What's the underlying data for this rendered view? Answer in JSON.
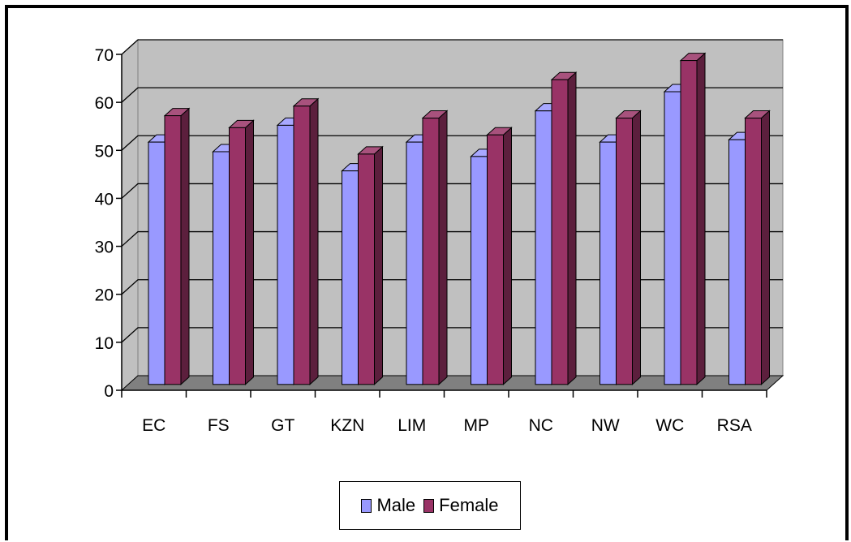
{
  "chart_data": {
    "type": "bar",
    "categories": [
      "EC",
      "FS",
      "GT",
      "KZN",
      "LIM",
      "MP",
      "NC",
      "NW",
      "WC",
      "RSA"
    ],
    "series": [
      {
        "name": "Male",
        "values": [
          50.5,
          48.5,
          54,
          44.5,
          50.5,
          47.5,
          57,
          50.5,
          61,
          51
        ]
      },
      {
        "name": "Female",
        "values": [
          56,
          53.5,
          58,
          48,
          55.5,
          52,
          63.5,
          55.5,
          67.5,
          55.5
        ]
      }
    ],
    "ylim": [
      0,
      70
    ],
    "yticks": [
      0,
      10,
      20,
      30,
      40,
      50,
      60,
      70
    ],
    "grid": true,
    "legend": "bottom",
    "colors": {
      "Male": "#9999ff",
      "Female": "#993366"
    },
    "style": "3d-clustered-column"
  }
}
